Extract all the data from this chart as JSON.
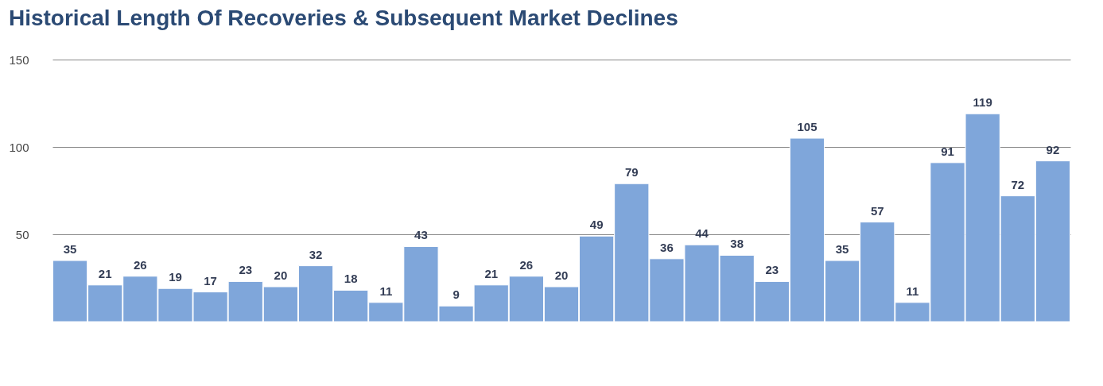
{
  "chart_data": {
    "type": "bar",
    "title": "Historical Length Of Recoveries & Subsequent Market Declines",
    "categories": [
      null,
      null,
      null,
      null,
      null,
      null,
      null,
      null,
      null,
      null,
      null,
      null,
      null,
      null,
      null,
      null,
      null,
      null,
      null,
      null,
      null,
      null,
      null,
      null,
      null,
      null,
      null,
      null,
      null
    ],
    "values": [
      35,
      21,
      26,
      19,
      17,
      23,
      20,
      32,
      18,
      11,
      43,
      9,
      21,
      26,
      20,
      49,
      79,
      36,
      44,
      38,
      23,
      105,
      35,
      57,
      11,
      91,
      119,
      72,
      92
    ],
    "color": "#7fa6da",
    "ylim": [
      0,
      150
    ],
    "yticks": [
      50,
      100,
      150
    ],
    "grid": "y",
    "data_labels": true
  }
}
